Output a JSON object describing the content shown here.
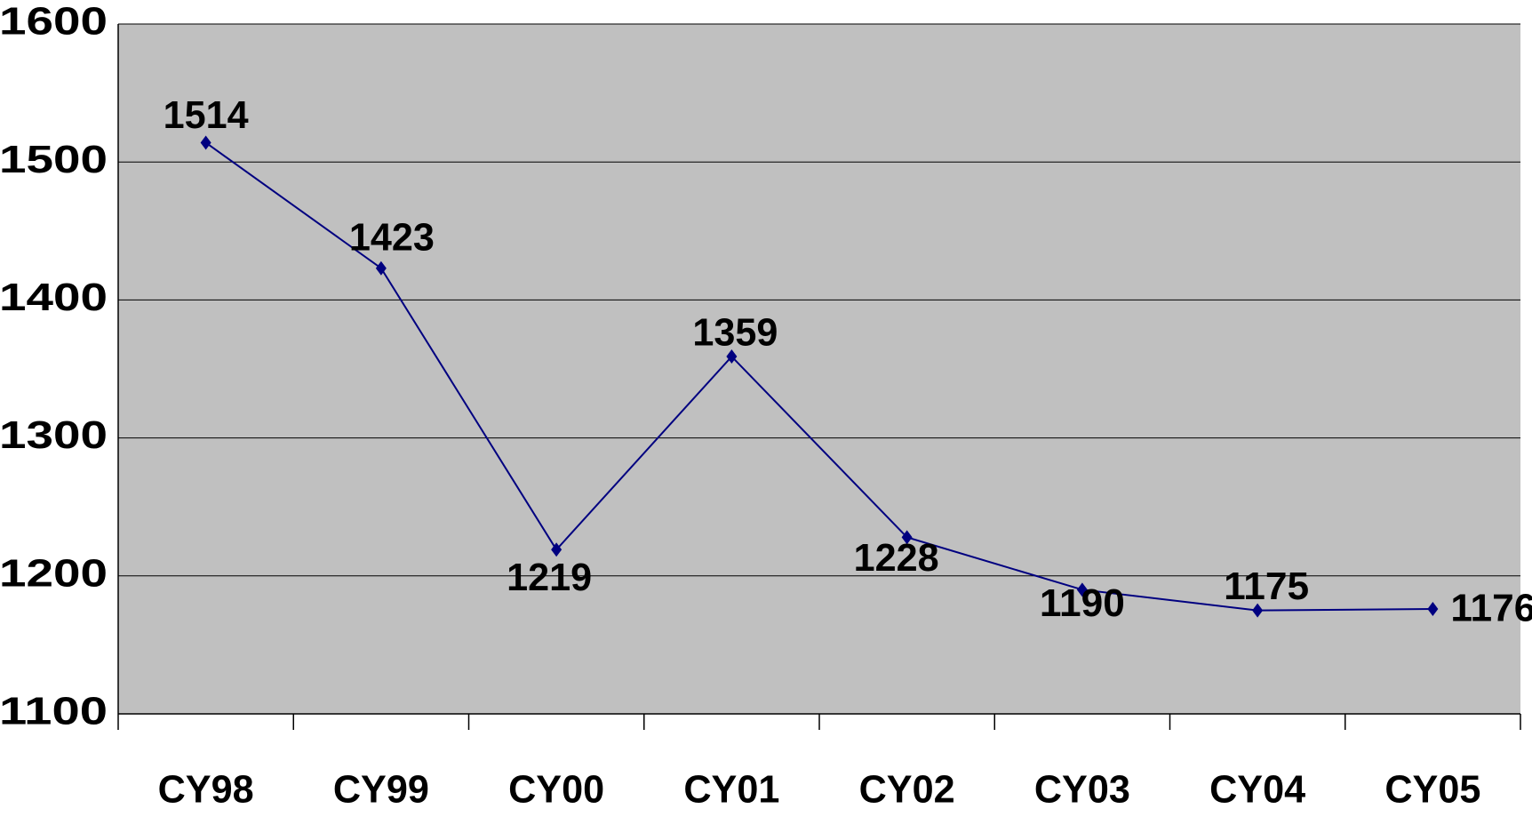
{
  "chart_data": {
    "type": "line",
    "categories": [
      "CY98",
      "CY99",
      "CY00",
      "CY01",
      "CY02",
      "CY03",
      "CY04",
      "CY05"
    ],
    "series": [
      {
        "color": "#000080",
        "values": [
          1514,
          1423,
          1219,
          1359,
          1228,
          1190,
          1175,
          1176
        ]
      }
    ],
    "ylim": [
      1100,
      1600
    ],
    "yticks": [
      1100,
      1200,
      1300,
      1400,
      1500,
      1600
    ],
    "grid": true,
    "background": "#c0c0c0"
  }
}
